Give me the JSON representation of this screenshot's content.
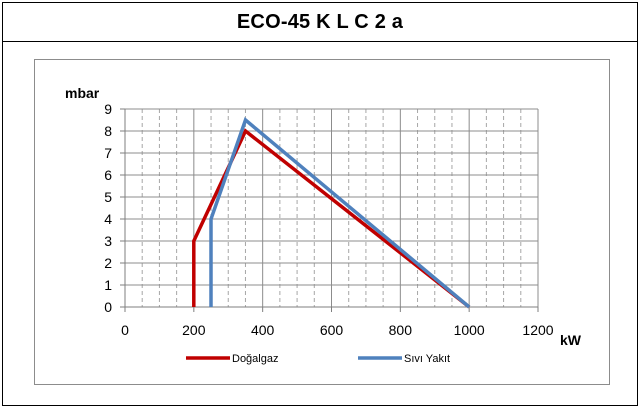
{
  "chart_data": {
    "type": "line",
    "title": "ECO-45 K L C 2 a",
    "xlabel": "kW",
    "ylabel": "mbar",
    "xlim": [
      0,
      1200
    ],
    "ylim": [
      0,
      9
    ],
    "x_ticks": [
      0,
      200,
      400,
      600,
      800,
      1000,
      1200
    ],
    "y_ticks": [
      0,
      1,
      2,
      3,
      4,
      5,
      6,
      7,
      8,
      9
    ],
    "x_minor_step": 50,
    "grid": true,
    "legend_position": "bottom",
    "series": [
      {
        "name": "Doğalgaz",
        "color": "#c00000",
        "points": [
          [
            200,
            0
          ],
          [
            200,
            3
          ],
          [
            350,
            8
          ],
          [
            1000,
            0
          ]
        ]
      },
      {
        "name": "Sıvı Yakıt",
        "color": "#4f81bd",
        "points": [
          [
            250,
            0
          ],
          [
            250,
            4
          ],
          [
            350,
            8.5
          ],
          [
            1000,
            0
          ]
        ]
      }
    ]
  }
}
